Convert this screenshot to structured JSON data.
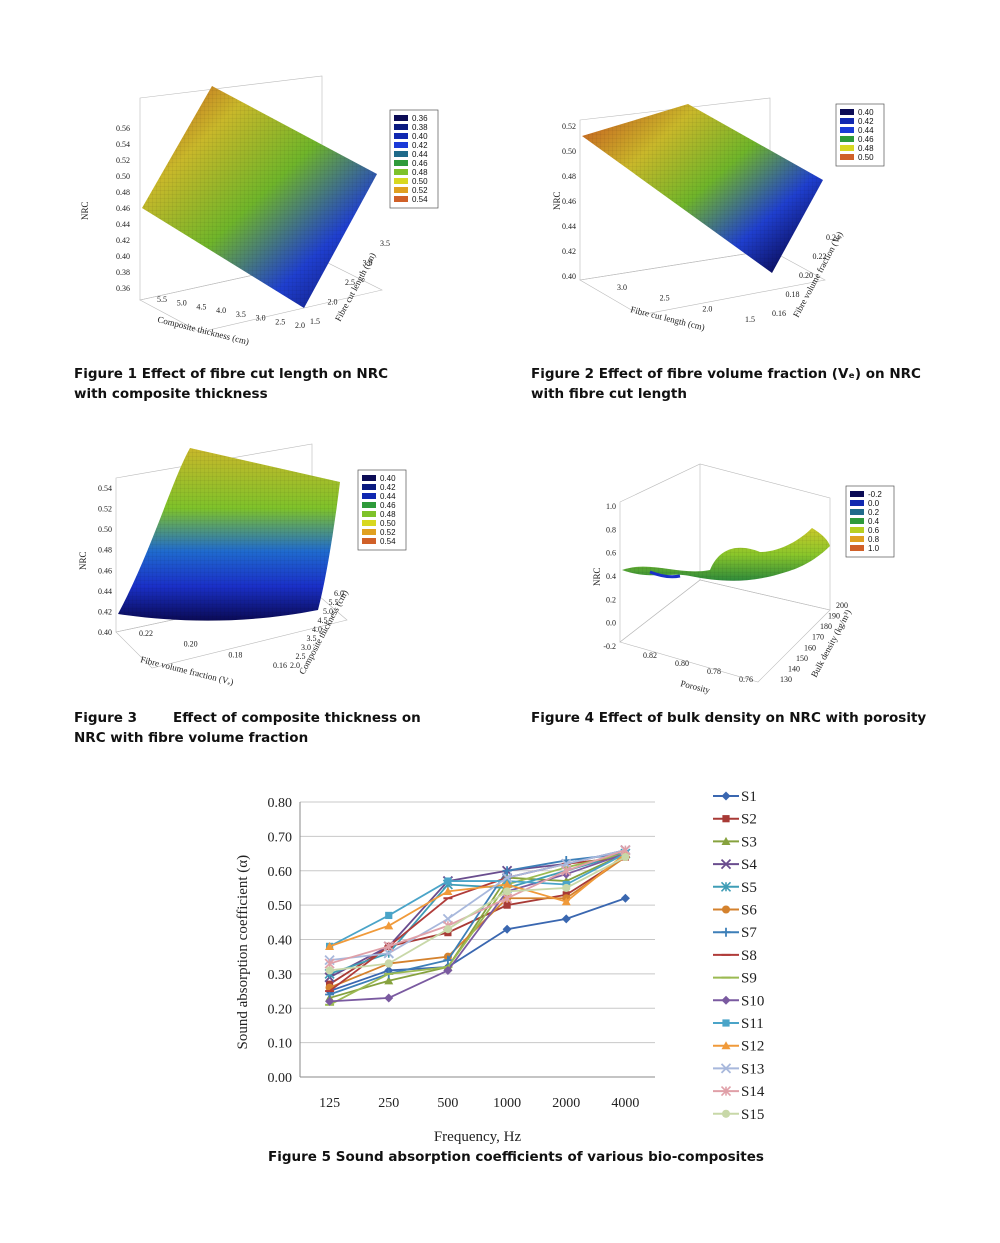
{
  "figures": [
    {
      "caption_lines": [
        "Figure 1 Effect of fibre cut length on NRC",
        "with composite thickness"
      ],
      "surface": {
        "z_label": "NRC",
        "z_ticks": [
          "0.56",
          "0.54",
          "0.52",
          "0.50",
          "0.48",
          "0.46",
          "0.44",
          "0.42",
          "0.40",
          "0.38",
          "0.36"
        ],
        "x_label": "Composite thickness (cm)",
        "x_ticks": [
          "5.5",
          "5.0",
          "4.5",
          "4.0",
          "3.5",
          "3.0",
          "2.5",
          "2.0"
        ],
        "y_label": "Fibre cut length (cm)",
        "y_ticks": [
          "3.5",
          "3.0",
          "2.5",
          "2.0",
          "1.5"
        ],
        "legend": [
          "0.36",
          "0.38",
          "0.40",
          "0.42",
          "0.44",
          "0.46",
          "0.48",
          "0.50",
          "0.52",
          "0.54"
        ],
        "legend_colors": [
          "#0b0b55",
          "#0a1a80",
          "#1028b0",
          "#1a3ad8",
          "#1f6a8a",
          "#2e9a3a",
          "#7ec22a",
          "#d8d820",
          "#e0a020",
          "#d06028"
        ]
      }
    },
    {
      "caption_lines": [
        "Figure 2 Effect of fibre volume fraction (Vₑ) on NRC",
        "with fibre cut length"
      ],
      "surface": {
        "z_label": "NRC",
        "z_ticks": [
          "0.52",
          "0.50",
          "0.48",
          "0.46",
          "0.44",
          "0.42",
          "0.40"
        ],
        "x_label": "Fibre cut length (cm)",
        "x_ticks": [
          "3.0",
          "2.5",
          "2.0",
          "1.5"
        ],
        "y_label": "Fibre volume fraction (Vₑ)",
        "y_ticks": [
          "0.24",
          "0.22",
          "0.20",
          "0.18",
          "0.16"
        ],
        "legend": [
          "0.40",
          "0.42",
          "0.44",
          "0.46",
          "0.48",
          "0.50"
        ],
        "legend_colors": [
          "#0b0b55",
          "#1028b0",
          "#1a3ad8",
          "#2e9a3a",
          "#d8d820",
          "#d06028"
        ]
      }
    },
    {
      "caption_lines": [
        "Figure 3",
        "Effect of composite thickness on",
        "NRC with fibre volume fraction"
      ],
      "surface": {
        "z_label": "NRC",
        "z_ticks": [
          "0.54",
          "0.52",
          "0.50",
          "0.48",
          "0.46",
          "0.44",
          "0.42",
          "0.40"
        ],
        "x_label": "Fibre volume fraction (Vₑ)",
        "x_ticks": [
          "0.22",
          "0.20",
          "0.18",
          "0.16"
        ],
        "y_label": "Composite thickness (cm)",
        "y_ticks": [
          "6.0",
          "5.5",
          "5.0",
          "4.5",
          "4.0",
          "3.5",
          "3.0",
          "2.5",
          "2.0"
        ],
        "legend": [
          "0.40",
          "0.42",
          "0.44",
          "0.46",
          "0.48",
          "0.50",
          "0.52",
          "0.54"
        ],
        "legend_colors": [
          "#0b0b55",
          "#0a1a80",
          "#1028b0",
          "#2e9a3a",
          "#7ec22a",
          "#d8d820",
          "#e0a020",
          "#d06028"
        ]
      }
    },
    {
      "caption_lines": [
        "Figure 4 Effect of bulk density on NRC with porosity"
      ],
      "surface": {
        "z_label": "NRC",
        "z_ticks": [
          "1.0",
          "0.8",
          "0.6",
          "0.4",
          "0.2",
          "0.0",
          "-0.2"
        ],
        "x_label": "Porosity",
        "x_ticks": [
          "0.82",
          "0.80",
          "0.78",
          "0.76"
        ],
        "y_label": "Bulk density (kg/m³)",
        "y_ticks": [
          "200",
          "190",
          "180",
          "170",
          "160",
          "150",
          "140",
          "130"
        ],
        "legend": [
          "-0.2",
          "0.0",
          "0.2",
          "0.4",
          "0.6",
          "0.8",
          "1.0"
        ],
        "legend_colors": [
          "#0b0b55",
          "#1028b0",
          "#1f6a8a",
          "#2e9a3a",
          "#b8d020",
          "#e0a020",
          "#d06028"
        ]
      }
    }
  ],
  "chart_data": {
    "type": "line",
    "title": "",
    "caption": "Figure 5 Sound absorption coefficients of various bio-composites",
    "xlabel": "Frequency, Hz",
    "ylabel": "Sound absorption coefficient (α)",
    "categories": [
      "125",
      "250",
      "500",
      "1000",
      "2000",
      "4000"
    ],
    "ylim": [
      0,
      0.8
    ],
    "yticks": [
      "0.00",
      "0.10",
      "0.20",
      "0.30",
      "0.40",
      "0.50",
      "0.60",
      "0.70",
      "0.80"
    ],
    "series": [
      {
        "name": "S1",
        "color": "#3a67b0",
        "marker": "diamond",
        "values": [
          0.25,
          0.31,
          0.32,
          0.43,
          0.46,
          0.52
        ]
      },
      {
        "name": "S2",
        "color": "#a83a36",
        "marker": "square",
        "values": [
          0.27,
          0.38,
          0.42,
          0.5,
          0.53,
          0.64
        ]
      },
      {
        "name": "S3",
        "color": "#86a23e",
        "marker": "triangle",
        "values": [
          0.23,
          0.28,
          0.32,
          0.58,
          0.57,
          0.65
        ]
      },
      {
        "name": "S4",
        "color": "#6a4d8e",
        "marker": "x",
        "values": [
          0.29,
          0.38,
          0.57,
          0.6,
          0.62,
          0.66
        ]
      },
      {
        "name": "S5",
        "color": "#3f9db6",
        "marker": "star",
        "values": [
          0.3,
          0.36,
          0.56,
          0.55,
          0.6,
          0.65
        ]
      },
      {
        "name": "S6",
        "color": "#d4822e",
        "marker": "circle",
        "values": [
          0.26,
          0.33,
          0.35,
          0.52,
          0.52,
          0.64
        ]
      },
      {
        "name": "S7",
        "color": "#3d7fb8",
        "marker": "plus",
        "values": [
          0.24,
          0.3,
          0.34,
          0.6,
          0.63,
          0.65
        ]
      },
      {
        "name": "S8",
        "color": "#b03c3a",
        "marker": "dash",
        "values": [
          0.25,
          0.38,
          0.52,
          0.58,
          0.62,
          0.64
        ]
      },
      {
        "name": "S9",
        "color": "#9bba52",
        "marker": "dash",
        "values": [
          0.21,
          0.3,
          0.32,
          0.56,
          0.61,
          0.65
        ]
      },
      {
        "name": "S10",
        "color": "#7a5aa0",
        "marker": "diamond",
        "values": [
          0.22,
          0.23,
          0.31,
          0.54,
          0.59,
          0.65
        ]
      },
      {
        "name": "S11",
        "color": "#4aa4c8",
        "marker": "square",
        "values": [
          0.38,
          0.47,
          0.57,
          0.57,
          0.56,
          0.65
        ]
      },
      {
        "name": "S12",
        "color": "#f09a3a",
        "marker": "triangle",
        "values": [
          0.38,
          0.44,
          0.54,
          0.56,
          0.51,
          0.65
        ]
      },
      {
        "name": "S13",
        "color": "#a8b8dc",
        "marker": "x",
        "values": [
          0.34,
          0.36,
          0.46,
          0.58,
          0.62,
          0.66
        ]
      },
      {
        "name": "S14",
        "color": "#e0a0a8",
        "marker": "star",
        "values": [
          0.33,
          0.38,
          0.44,
          0.52,
          0.6,
          0.66
        ]
      },
      {
        "name": "S15",
        "color": "#c8d8a8",
        "marker": "circle",
        "values": [
          0.31,
          0.33,
          0.43,
          0.54,
          0.55,
          0.64
        ]
      }
    ]
  }
}
